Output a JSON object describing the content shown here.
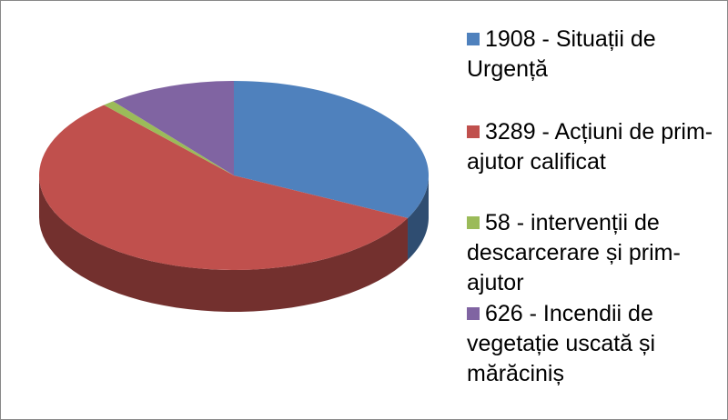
{
  "chart_data": {
    "type": "pie3d",
    "categories": [
      "1908 - Situații de Urgență",
      "3289 - Acțiuni de prim-ajutor calificat",
      "58 - intervenții de descarcerare și prim-ajutor",
      "626 - Incendii de vegetație uscată și mărăciniș"
    ],
    "values": [
      1908,
      3289,
      58,
      626
    ],
    "colors": [
      "#4f81bd",
      "#c0504d",
      "#9bbb59",
      "#8064a2"
    ],
    "legend": "right"
  }
}
